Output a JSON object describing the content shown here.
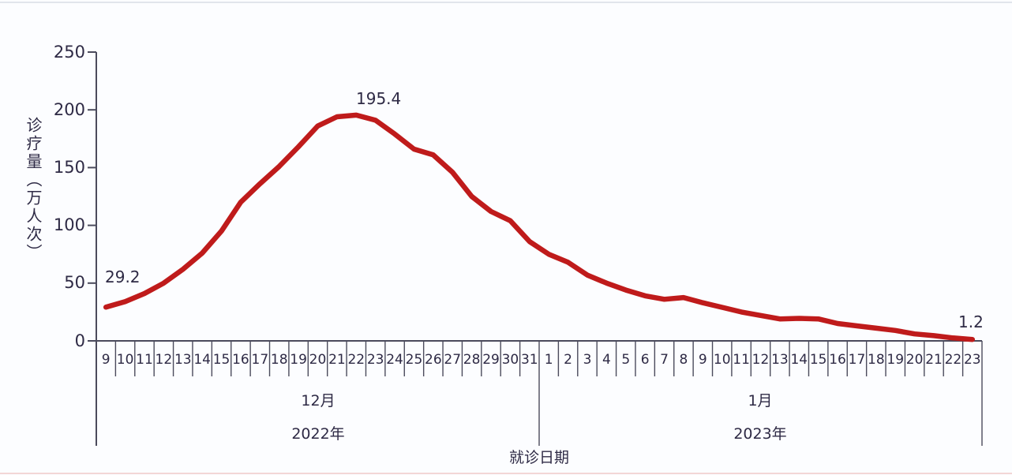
{
  "page": {
    "background": "#fcfdff",
    "top_edge_color": "#e1e5ec",
    "bottom_edge_color": "#f3d6d6"
  },
  "chart_data": {
    "type": "line",
    "title": "",
    "xlabel": "就诊日期",
    "ylabel": "诊疗量（万人次）",
    "ylim": [
      0,
      250
    ],
    "y_ticks": [
      "0",
      "50",
      "100",
      "150",
      "200",
      "250"
    ],
    "y_tick_values": [
      0,
      50,
      100,
      150,
      200,
      250
    ],
    "grid": false,
    "legend": "none",
    "line_color": "#bf1b1b",
    "text_color": "#2e2a45",
    "axis_color": "#4b4b5c",
    "groups": [
      {
        "month_label": "12月",
        "year_label": "2022年",
        "days": [
          "9",
          "10",
          "11",
          "12",
          "13",
          "14",
          "15",
          "16",
          "17",
          "18",
          "19",
          "20",
          "21",
          "22",
          "23",
          "24",
          "25",
          "26",
          "27",
          "28",
          "29",
          "30",
          "31"
        ],
        "values": [
          29.2,
          34,
          41,
          50,
          62,
          76,
          95,
          120,
          136,
          151,
          168,
          186,
          194,
          195.4,
          191,
          179,
          166,
          161,
          146,
          125,
          112,
          104,
          86
        ]
      },
      {
        "month_label": "1月",
        "year_label": "2023年",
        "days": [
          "1",
          "2",
          "3",
          "4",
          "5",
          "6",
          "7",
          "8",
          "9",
          "10",
          "11",
          "12",
          "13",
          "14",
          "15",
          "16",
          "17",
          "18",
          "19",
          "20",
          "21",
          "22",
          "23"
        ],
        "values": [
          75,
          68,
          57,
          50,
          44,
          39,
          36,
          37.5,
          33,
          29,
          25,
          22,
          19,
          19.5,
          19,
          15,
          13,
          11,
          9,
          6,
          4.5,
          2.5,
          1.2
        ]
      }
    ],
    "annotations": [
      {
        "text": "29.2",
        "day_index": 0
      },
      {
        "text": "195.4",
        "day_index": 13
      },
      {
        "text": "1.2",
        "day_index": 45
      }
    ]
  }
}
